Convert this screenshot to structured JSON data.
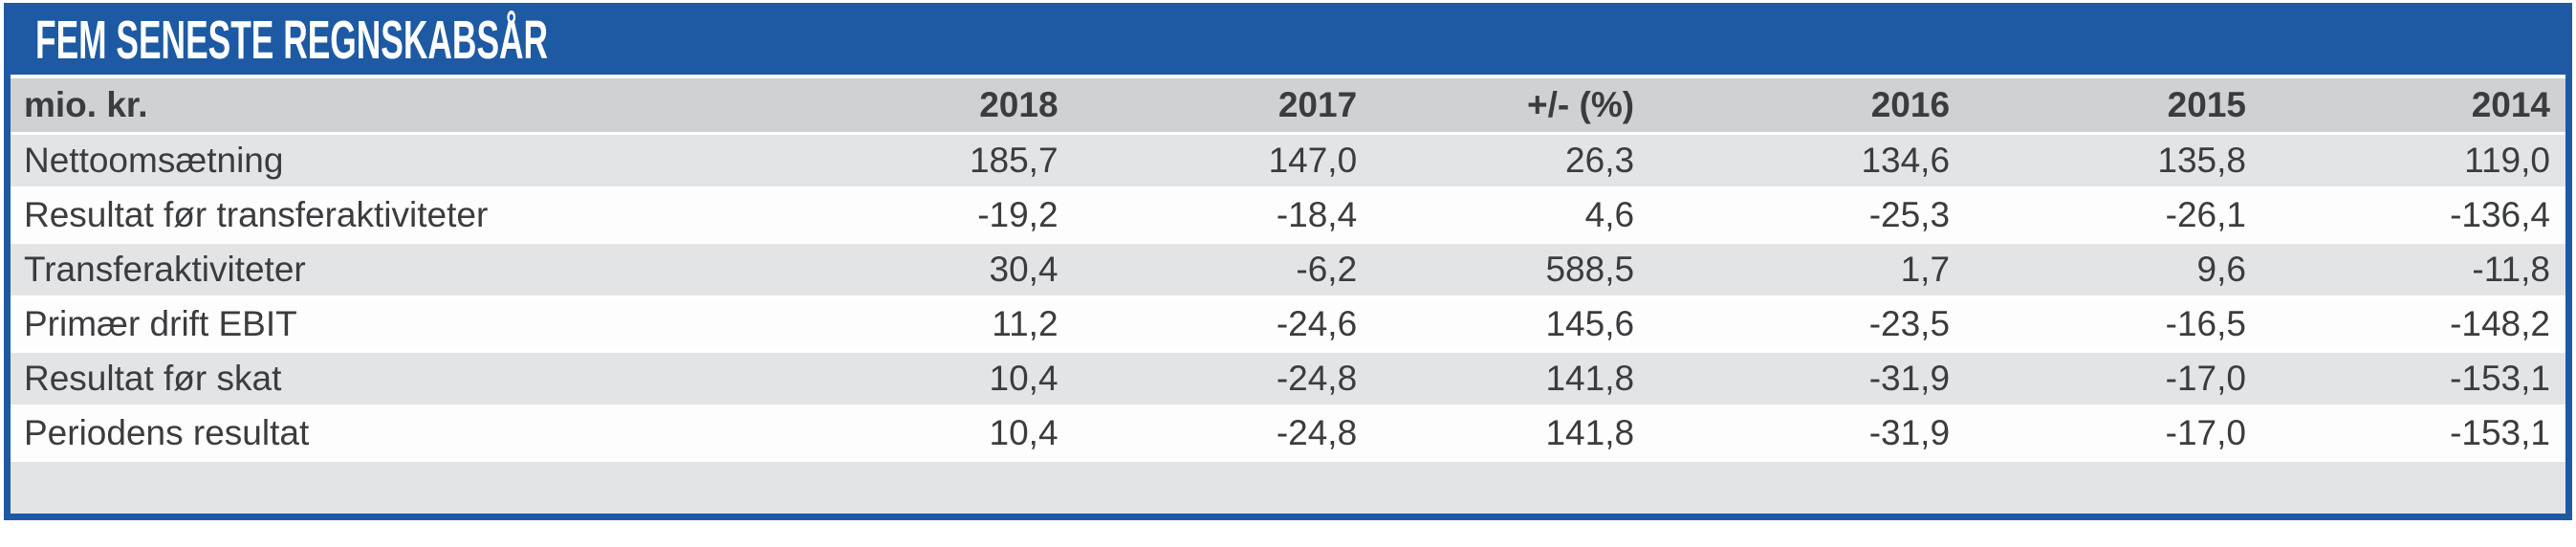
{
  "title": "FEM SENESTE REGNSKABSÅR",
  "colors": {
    "accent_blue": "#1d5aa3",
    "header_row_gray": "#cfd1d4",
    "stripe_gray": "#e3e4e6",
    "stripe_white": "#fdfdfe",
    "text_dark": "#3a3c3e",
    "title_text": "#ffffff"
  },
  "table": {
    "unit_label": "mio. kr.",
    "columns": [
      "2018",
      "2017",
      "+/- (%)",
      "2016",
      "2015",
      "2014"
    ],
    "rows": [
      {
        "label": "Nettoomsætning",
        "values": [
          "185,7",
          "147,0",
          "26,3",
          "134,6",
          "135,8",
          "119,0"
        ]
      },
      {
        "label": "Resultat før transferaktiviteter",
        "values": [
          "-19,2",
          "-18,4",
          "4,6",
          "-25,3",
          "-26,1",
          "-136,4"
        ]
      },
      {
        "label": "Transferaktiviteter",
        "values": [
          "30,4",
          "-6,2",
          "588,5",
          "1,7",
          "9,6",
          "-11,8"
        ]
      },
      {
        "label": "Primær drift EBIT",
        "values": [
          "11,2",
          "-24,6",
          "145,6",
          "-23,5",
          "-16,5",
          "-148,2"
        ]
      },
      {
        "label": "Resultat før skat",
        "values": [
          "10,4",
          "-24,8",
          "141,8",
          "-31,9",
          "-17,0",
          "-153,1"
        ]
      },
      {
        "label": "Periodens resultat",
        "values": [
          "10,4",
          "-24,8",
          "141,8",
          "-31,9",
          "-17,0",
          "-153,1"
        ]
      }
    ]
  }
}
